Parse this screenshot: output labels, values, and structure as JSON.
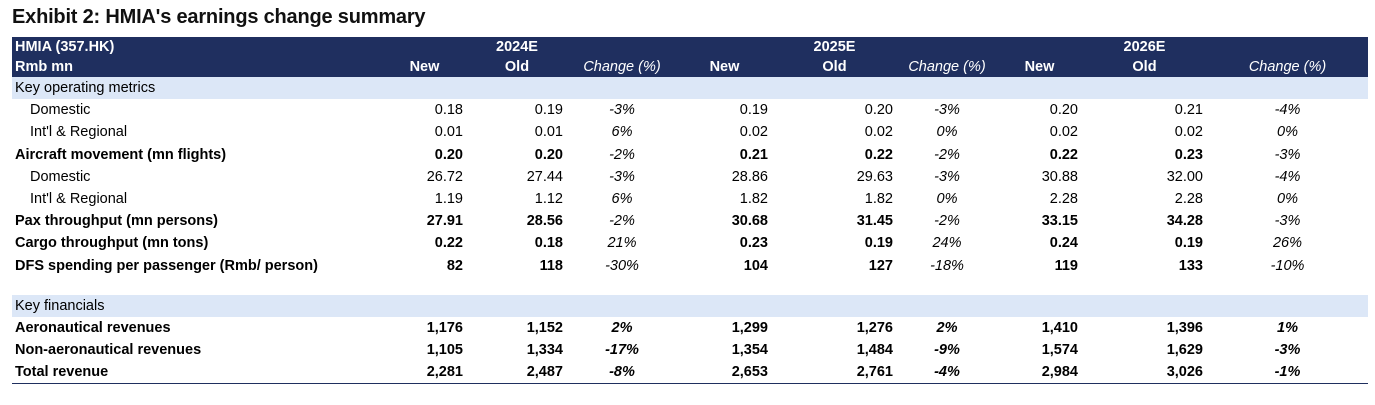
{
  "title": "Exhibit 2: HMIA's earnings change summary",
  "header": {
    "company": "HMIA (357.HK)",
    "unit": "Rmb mn",
    "years": [
      "2024E",
      "2025E",
      "2026E"
    ],
    "sub": [
      "New",
      "Old",
      "Change (%)"
    ]
  },
  "sections": [
    {
      "title": "Key operating metrics",
      "rows": [
        {
          "label": "Domestic",
          "style": "indent",
          "values": [
            "0.18",
            "0.19",
            "-3%",
            "0.19",
            "0.20",
            "-3%",
            "0.20",
            "0.21",
            "-4%"
          ]
        },
        {
          "label": "Int'l & Regional",
          "style": "indent",
          "values": [
            "0.01",
            "0.01",
            "6%",
            "0.02",
            "0.02",
            "0%",
            "0.02",
            "0.02",
            "0%"
          ]
        },
        {
          "label": "Aircraft movement (mn flights)",
          "style": "bold",
          "values": [
            "0.20",
            "0.20",
            "-2%",
            "0.21",
            "0.22",
            "-2%",
            "0.22",
            "0.23",
            "-3%"
          ]
        },
        {
          "label": "Domestic",
          "style": "indent",
          "values": [
            "26.72",
            "27.44",
            "-3%",
            "28.86",
            "29.63",
            "-3%",
            "30.88",
            "32.00",
            "-4%"
          ]
        },
        {
          "label": "Int'l & Regional",
          "style": "indent",
          "values": [
            "1.19",
            "1.12",
            "6%",
            "1.82",
            "1.82",
            "0%",
            "2.28",
            "2.28",
            "0%"
          ]
        },
        {
          "label": "Pax throughput (mn persons)",
          "style": "bold",
          "values": [
            "27.91",
            "28.56",
            "-2%",
            "30.68",
            "31.45",
            "-2%",
            "33.15",
            "34.28",
            "-3%"
          ]
        },
        {
          "label": "Cargo throughput (mn tons)",
          "style": "bold",
          "values": [
            "0.22",
            "0.18",
            "21%",
            "0.23",
            "0.19",
            "24%",
            "0.24",
            "0.19",
            "26%"
          ]
        },
        {
          "label": "DFS spending per passenger (Rmb/ person)",
          "style": "bold",
          "values": [
            "82",
            "118",
            "-30%",
            "104",
            "127",
            "-18%",
            "119",
            "133",
            "-10%"
          ]
        }
      ]
    },
    {
      "title": "Key financials",
      "rows": [
        {
          "label": "Aeronautical revenues",
          "style": "fin",
          "values": [
            "1,176",
            "1,152",
            "2%",
            "1,299",
            "1,276",
            "2%",
            "1,410",
            "1,396",
            "1%"
          ]
        },
        {
          "label": "Non-aeronautical revenues",
          "style": "fin",
          "values": [
            "1,105",
            "1,334",
            "-17%",
            "1,354",
            "1,484",
            "-9%",
            "1,574",
            "1,629",
            "-3%"
          ]
        },
        {
          "label": "Total revenue",
          "style": "fin",
          "values": [
            "2,281",
            "2,487",
            "-8%",
            "2,653",
            "2,761",
            "-4%",
            "2,984",
            "3,026",
            "-1%"
          ]
        }
      ]
    }
  ]
}
